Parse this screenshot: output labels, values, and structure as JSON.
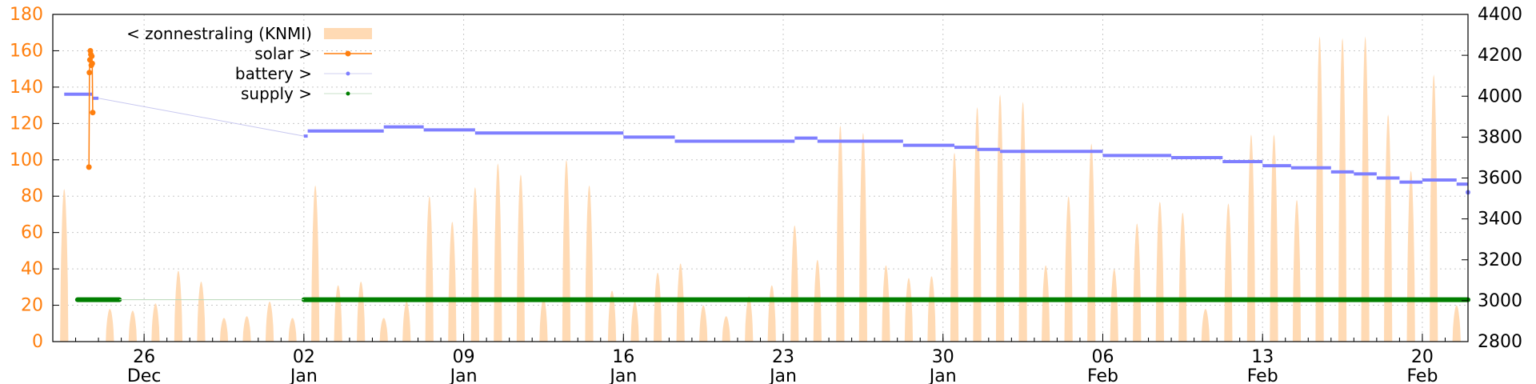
{
  "chart_data": {
    "type": "line",
    "x_range": [
      "2023-12-22",
      "2024-02-22"
    ],
    "y_left": {
      "range": [
        0,
        180
      ],
      "ticks": [
        0,
        20,
        40,
        60,
        80,
        100,
        120,
        140,
        160,
        180
      ]
    },
    "y_right": {
      "range": [
        2800,
        4400
      ],
      "ticks": [
        2800,
        3000,
        3200,
        3400,
        3600,
        3800,
        4000,
        4200,
        4400
      ]
    },
    "x_ticks": [
      {
        "date": "2023-12-26",
        "day": "26",
        "month": "Dec"
      },
      {
        "date": "2024-01-02",
        "day": "02",
        "month": "Jan"
      },
      {
        "date": "2024-01-09",
        "day": "09",
        "month": "Jan"
      },
      {
        "date": "2024-01-16",
        "day": "16",
        "month": "Jan"
      },
      {
        "date": "2024-01-23",
        "day": "23",
        "month": "Jan"
      },
      {
        "date": "2024-01-30",
        "day": "30",
        "month": "Jan"
      },
      {
        "date": "2024-02-06",
        "day": "06",
        "month": "Feb"
      },
      {
        "date": "2024-02-13",
        "day": "13",
        "month": "Feb"
      },
      {
        "date": "2024-02-20",
        "day": "20",
        "month": "Feb"
      }
    ],
    "grid": true,
    "legend_position": "top-left",
    "series": [
      {
        "name": "< zonnestraling (KNMI)",
        "axis": "left",
        "style": "filled-area",
        "color": "#ffdab4",
        "daily_peaks": [
          [
            "2023-12-22",
            84
          ],
          [
            "2023-12-23",
            0
          ],
          [
            "2023-12-24",
            18
          ],
          [
            "2023-12-25",
            17
          ],
          [
            "2023-12-26",
            21
          ],
          [
            "2023-12-27",
            39
          ],
          [
            "2023-12-28",
            33
          ],
          [
            "2023-12-29",
            13
          ],
          [
            "2023-12-30",
            14
          ],
          [
            "2023-12-31",
            22
          ],
          [
            "2024-01-01",
            13
          ],
          [
            "2024-01-02",
            86
          ],
          [
            "2024-01-03",
            31
          ],
          [
            "2024-01-04",
            33
          ],
          [
            "2024-01-05",
            13
          ],
          [
            "2024-01-06",
            22
          ],
          [
            "2024-01-07",
            80
          ],
          [
            "2024-01-08",
            66
          ],
          [
            "2024-01-09",
            85
          ],
          [
            "2024-01-10",
            98
          ],
          [
            "2024-01-11",
            92
          ],
          [
            "2024-01-12",
            24
          ],
          [
            "2024-01-13",
            100
          ],
          [
            "2024-01-14",
            86
          ],
          [
            "2024-01-15",
            28
          ],
          [
            "2024-01-16",
            22
          ],
          [
            "2024-01-17",
            38
          ],
          [
            "2024-01-18",
            43
          ],
          [
            "2024-01-19",
            20
          ],
          [
            "2024-01-20",
            14
          ],
          [
            "2024-01-21",
            25
          ],
          [
            "2024-01-22",
            31
          ],
          [
            "2024-01-23",
            64
          ],
          [
            "2024-01-24",
            45
          ],
          [
            "2024-01-25",
            119
          ],
          [
            "2024-01-26",
            115
          ],
          [
            "2024-01-27",
            42
          ],
          [
            "2024-01-28",
            35
          ],
          [
            "2024-01-29",
            36
          ],
          [
            "2024-01-30",
            104
          ],
          [
            "2024-01-31",
            129
          ],
          [
            "2024-02-01",
            136
          ],
          [
            "2024-02-02",
            132
          ],
          [
            "2024-02-03",
            42
          ],
          [
            "2024-02-04",
            80
          ],
          [
            "2024-02-05",
            109
          ],
          [
            "2024-02-06",
            40
          ],
          [
            "2024-02-07",
            65
          ],
          [
            "2024-02-08",
            77
          ],
          [
            "2024-02-09",
            71
          ],
          [
            "2024-02-10",
            18
          ],
          [
            "2024-02-11",
            76
          ],
          [
            "2024-02-12",
            114
          ],
          [
            "2024-02-13",
            114
          ],
          [
            "2024-02-14",
            78
          ],
          [
            "2024-02-15",
            168
          ],
          [
            "2024-02-16",
            167
          ],
          [
            "2024-02-17",
            168
          ],
          [
            "2024-02-18",
            125
          ],
          [
            "2024-02-19",
            94
          ],
          [
            "2024-02-20",
            147
          ],
          [
            "2024-02-21",
            20
          ]
        ]
      },
      {
        "name": "solar >",
        "axis": "left",
        "style": "line-points",
        "color": "#ff7f0e",
        "points": [
          [
            "2023-12-23T14:00",
            96
          ],
          [
            "2023-12-23T14:30",
            148
          ],
          [
            "2023-12-23T15:00",
            155
          ],
          [
            "2023-12-23T15:30",
            160
          ],
          [
            "2023-12-23T16:00",
            158
          ],
          [
            "2023-12-23T16:30",
            152
          ],
          [
            "2023-12-23T17:00",
            157
          ],
          [
            "2023-12-23T17:30",
            153
          ],
          [
            "2023-12-23T18:00",
            126
          ]
        ]
      },
      {
        "name": "battery >",
        "axis": "right",
        "style": "points",
        "color": "#7f7fff",
        "steps": [
          [
            "2023-12-22T12:00",
            4010
          ],
          [
            "2023-12-23T18:00",
            3990
          ],
          [
            "2023-12-24T00:00",
            3990
          ],
          [
            "2024-01-02T00:00",
            3805
          ],
          [
            "2024-01-02T04:00",
            3830
          ],
          [
            "2024-01-05T12:00",
            3850
          ],
          [
            "2024-01-07T06:00",
            3835
          ],
          [
            "2024-01-09T12:00",
            3820
          ],
          [
            "2024-01-16T00:00",
            3800
          ],
          [
            "2024-01-18T06:00",
            3780
          ],
          [
            "2024-01-23T12:00",
            3795
          ],
          [
            "2024-01-24T12:00",
            3780
          ],
          [
            "2024-01-28T06:00",
            3760
          ],
          [
            "2024-01-30T12:00",
            3750
          ],
          [
            "2024-01-31T12:00",
            3740
          ],
          [
            "2024-02-01T12:00",
            3730
          ],
          [
            "2024-02-06T00:00",
            3710
          ],
          [
            "2024-02-09T00:00",
            3700
          ],
          [
            "2024-02-11T06:00",
            3680
          ],
          [
            "2024-02-13T00:00",
            3660
          ],
          [
            "2024-02-14T06:00",
            3650
          ],
          [
            "2024-02-16T00:00",
            3630
          ],
          [
            "2024-02-17T00:00",
            3620
          ],
          [
            "2024-02-18T00:00",
            3600
          ],
          [
            "2024-02-19T00:00",
            3580
          ],
          [
            "2024-02-20T00:00",
            3590
          ],
          [
            "2024-02-21T12:00",
            3570
          ],
          [
            "2024-02-22T00:00",
            3530
          ]
        ]
      },
      {
        "name": "supply >",
        "axis": "right",
        "style": "points",
        "color": "#007f00",
        "segments": [
          {
            "from": "2023-12-23T02:00",
            "to": "2023-12-24T22:00",
            "value": 3005
          },
          {
            "from": "2024-01-02T00:00",
            "to": "2024-02-22T00:00",
            "value": 3005
          }
        ]
      }
    ]
  },
  "colors": {
    "left_axis": "#ff7f0e",
    "right_axis": "#000000",
    "grid": "#c8c8c8"
  }
}
